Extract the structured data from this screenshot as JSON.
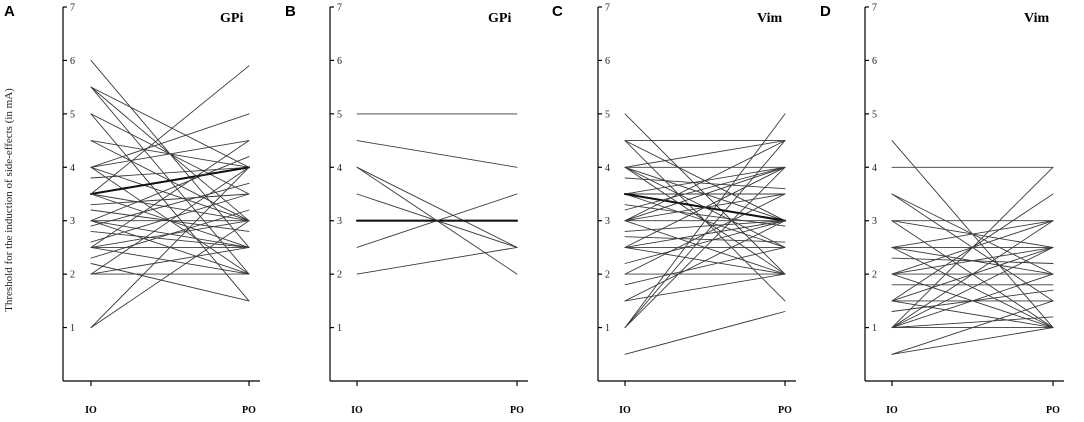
{
  "chart_data": [
    {
      "type": "line",
      "panel": "A",
      "title": "GPi",
      "ylabel": "Threshold for the induction of side-effects (in mA)",
      "categories": [
        "IO",
        "PO"
      ],
      "ylim": [
        0,
        7
      ],
      "yticks": [
        1,
        2,
        3,
        4,
        5,
        6,
        7
      ],
      "pairs": [
        [
          6.0,
          2.5
        ],
        [
          5.5,
          2.0
        ],
        [
          5.5,
          4.0
        ],
        [
          5.5,
          3.0
        ],
        [
          5.0,
          3.5
        ],
        [
          5.0,
          1.5
        ],
        [
          4.5,
          4.0
        ],
        [
          4.5,
          3.0
        ],
        [
          4.0,
          5.0
        ],
        [
          4.0,
          2.0
        ],
        [
          4.0,
          3.0
        ],
        [
          4.0,
          4.5
        ],
        [
          3.8,
          4.0
        ],
        [
          3.5,
          4.0
        ],
        [
          3.5,
          4.0
        ],
        [
          3.5,
          2.5
        ],
        [
          3.5,
          3.0
        ],
        [
          3.5,
          5.9
        ],
        [
          3.3,
          3.5
        ],
        [
          3.2,
          2.8
        ],
        [
          3.0,
          2.5
        ],
        [
          3.0,
          3.0
        ],
        [
          3.0,
          4.2
        ],
        [
          3.0,
          2.0
        ],
        [
          2.9,
          3.7
        ],
        [
          2.8,
          2.5
        ],
        [
          2.6,
          3.5
        ],
        [
          2.5,
          2.5
        ],
        [
          2.5,
          3.0
        ],
        [
          2.5,
          2.0
        ],
        [
          2.5,
          4.5
        ],
        [
          2.3,
          3.2
        ],
        [
          2.2,
          1.5
        ],
        [
          2.0,
          2.0
        ],
        [
          2.0,
          4.0
        ],
        [
          2.0,
          2.5
        ],
        [
          1.0,
          4.0
        ],
        [
          1.0,
          3.0
        ]
      ]
    },
    {
      "type": "line",
      "panel": "B",
      "title": "GPi",
      "ylabel": "",
      "categories": [
        "IO",
        "PO"
      ],
      "ylim": [
        0,
        7
      ],
      "yticks": [
        1,
        2,
        3,
        4,
        5,
        6,
        7
      ],
      "pairs": [
        [
          5.0,
          5.0
        ],
        [
          4.5,
          4.0
        ],
        [
          4.0,
          2.5
        ],
        [
          4.0,
          2.0
        ],
        [
          3.5,
          2.5
        ],
        [
          3.0,
          3.0
        ],
        [
          3.0,
          3.0
        ],
        [
          2.5,
          3.5
        ],
        [
          2.0,
          2.5
        ]
      ]
    },
    {
      "type": "line",
      "panel": "C",
      "title": "Vim",
      "ylabel": "",
      "categories": [
        "IO",
        "PO"
      ],
      "ylim": [
        0,
        7
      ],
      "yticks": [
        1,
        2,
        3,
        4,
        5,
        6,
        7
      ],
      "pairs": [
        [
          5.0,
          2.0
        ],
        [
          4.5,
          4.5
        ],
        [
          4.5,
          3.0
        ],
        [
          4.5,
          1.5
        ],
        [
          4.0,
          4.0
        ],
        [
          4.0,
          3.0
        ],
        [
          4.0,
          2.5
        ],
        [
          4.0,
          4.5
        ],
        [
          4.0,
          2.0
        ],
        [
          3.8,
          3.6
        ],
        [
          3.5,
          3.5
        ],
        [
          3.5,
          3.0
        ],
        [
          3.5,
          4.0
        ],
        [
          3.5,
          2.5
        ],
        [
          3.5,
          3.0
        ],
        [
          3.3,
          2.9
        ],
        [
          3.2,
          4.0
        ],
        [
          3.0,
          3.0
        ],
        [
          3.0,
          4.0
        ],
        [
          3.0,
          2.0
        ],
        [
          3.0,
          3.5
        ],
        [
          3.0,
          4.5
        ],
        [
          2.8,
          3.0
        ],
        [
          2.7,
          2.6
        ],
        [
          2.5,
          2.5
        ],
        [
          2.5,
          3.0
        ],
        [
          2.5,
          4.0
        ],
        [
          2.5,
          2.0
        ],
        [
          2.2,
          3.0
        ],
        [
          2.0,
          2.0
        ],
        [
          2.0,
          3.5
        ],
        [
          1.8,
          2.5
        ],
        [
          1.5,
          3.0
        ],
        [
          1.5,
          2.0
        ],
        [
          1.0,
          4.0
        ],
        [
          1.0,
          4.5
        ],
        [
          1.0,
          5.0
        ],
        [
          0.5,
          1.3
        ]
      ]
    },
    {
      "type": "line",
      "panel": "D",
      "title": "Vim",
      "ylabel": "",
      "categories": [
        "IO",
        "PO"
      ],
      "ylim": [
        0,
        7
      ],
      "yticks": [
        1,
        2,
        3,
        4,
        5,
        6,
        7
      ],
      "pairs": [
        [
          4.5,
          1.0
        ],
        [
          4.0,
          4.0
        ],
        [
          3.5,
          1.5
        ],
        [
          3.5,
          2.0
        ],
        [
          3.0,
          3.0
        ],
        [
          3.0,
          1.0
        ],
        [
          3.0,
          2.5
        ],
        [
          2.5,
          2.5
        ],
        [
          2.5,
          3.0
        ],
        [
          2.5,
          1.0
        ],
        [
          2.5,
          2.0
        ],
        [
          2.3,
          2.2
        ],
        [
          2.0,
          2.0
        ],
        [
          2.0,
          3.0
        ],
        [
          2.0,
          1.0
        ],
        [
          2.0,
          2.5
        ],
        [
          1.8,
          1.8
        ],
        [
          1.5,
          1.5
        ],
        [
          1.5,
          2.5
        ],
        [
          1.5,
          3.5
        ],
        [
          1.5,
          1.0
        ],
        [
          1.3,
          1.7
        ],
        [
          1.0,
          1.0
        ],
        [
          1.0,
          2.0
        ],
        [
          1.0,
          3.0
        ],
        [
          1.0,
          4.0
        ],
        [
          1.0,
          1.2
        ],
        [
          1.0,
          2.5
        ],
        [
          0.5,
          1.0
        ],
        [
          0.5,
          1.5
        ]
      ]
    }
  ]
}
